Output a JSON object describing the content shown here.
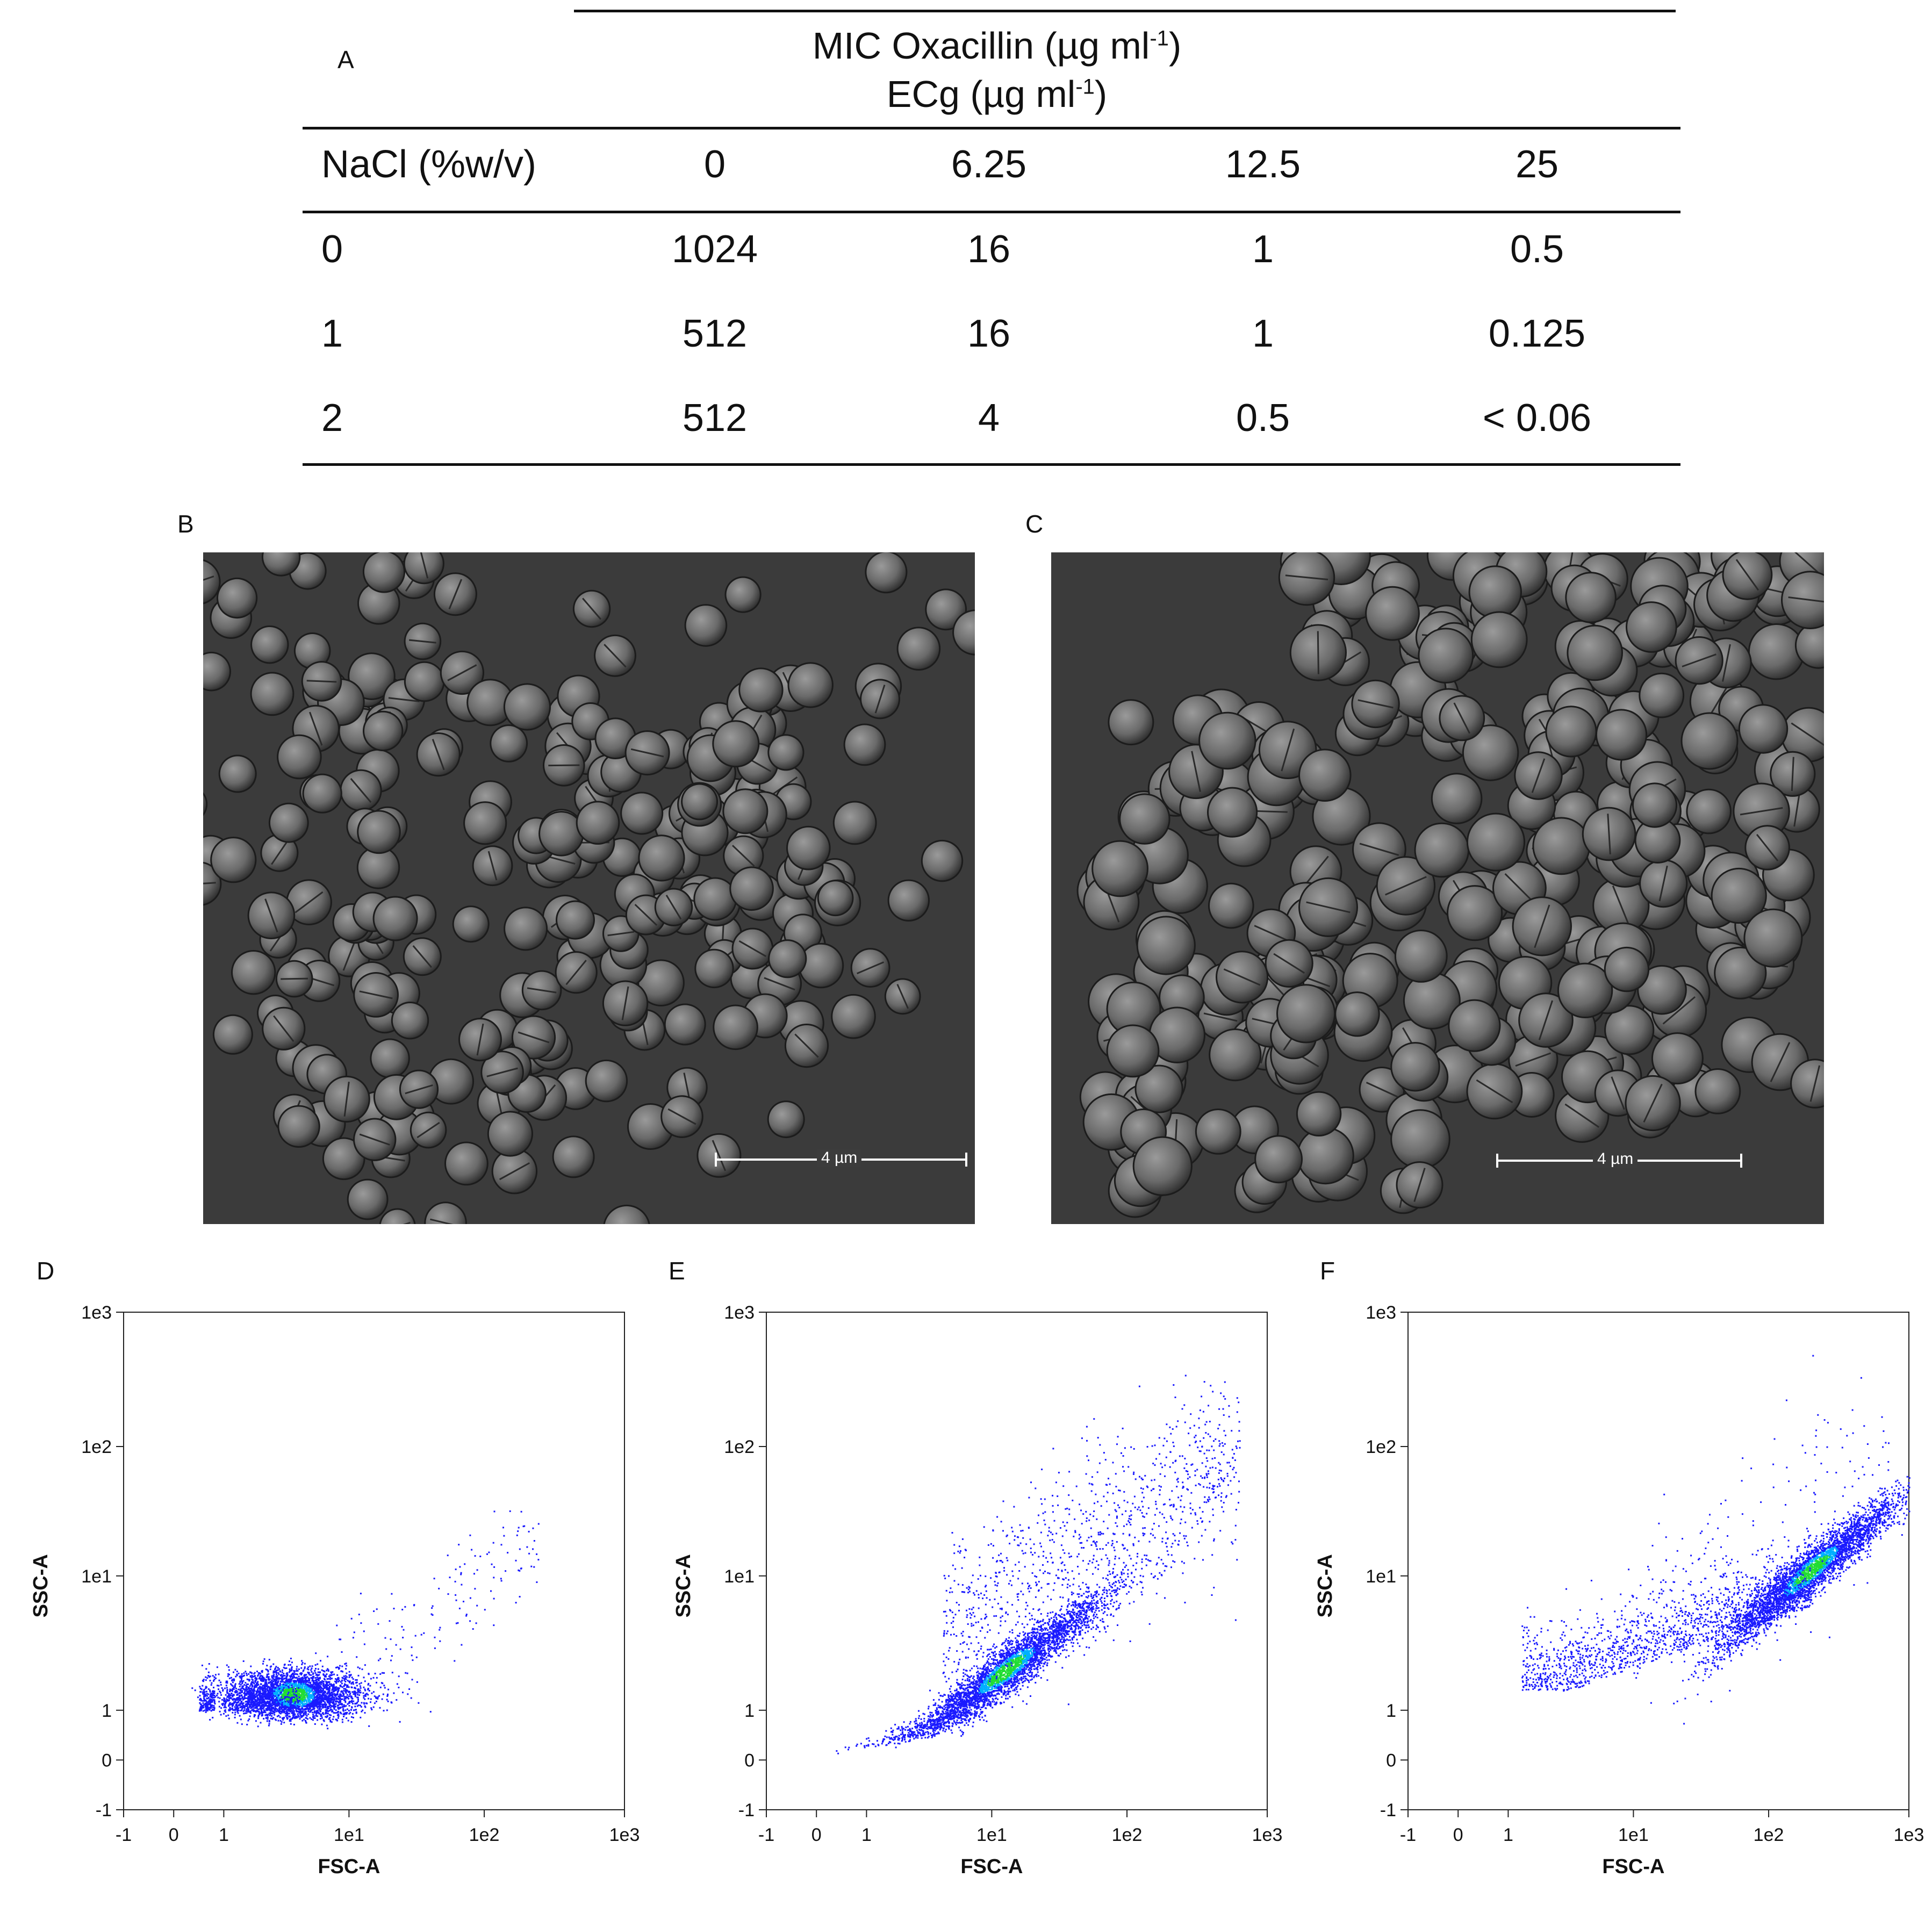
{
  "panels": {
    "a": "A",
    "b": "B",
    "c": "C",
    "d": "D",
    "e": "E",
    "f": "F"
  },
  "table": {
    "header_line1": "MIC Oxacillin (µg ml",
    "header_line1_sup": "-1",
    "header_line1_end": ")",
    "header_line2": "ECg (µg ml",
    "header_line2_sup": "-1",
    "header_line2_end": ")",
    "row_header": "NaCl (%w/v)",
    "columns": [
      "0",
      "6.25",
      "12.5",
      "25"
    ],
    "rows": [
      {
        "nacl": "0",
        "values": [
          "1024",
          "16",
          "1",
          "0.5"
        ]
      },
      {
        "nacl": "1",
        "values": [
          "512",
          "16",
          "1",
          "0.125"
        ]
      },
      {
        "nacl": "2",
        "values": [
          "512",
          "4",
          "0.5",
          "< 0.06"
        ]
      }
    ]
  },
  "sem": {
    "b_scale": "4 µm",
    "c_scale": "4 µm"
  },
  "chart_data": [
    {
      "type": "scatter",
      "panel": "D",
      "xlabel": "FSC-A",
      "ylabel": "SSC-A",
      "x_ticks": [
        "-1",
        "0",
        "1",
        "1e1",
        "1e2",
        "1e3"
      ],
      "y_ticks": [
        "-1",
        "0",
        "1",
        "1e1",
        "1e2",
        "1e3"
      ],
      "scale": "biexponential",
      "population_center": {
        "x": 3.5,
        "y": 1.3
      },
      "colors": [
        "#1a1aff",
        "#00b0ff",
        "#22dd33"
      ]
    },
    {
      "type": "scatter",
      "panel": "E",
      "xlabel": "FSC-A",
      "ylabel": "SSC-A",
      "x_ticks": [
        "-1",
        "0",
        "1",
        "1e1",
        "1e2",
        "1e3"
      ],
      "y_ticks": [
        "-1",
        "0",
        "1",
        "1e1",
        "1e2",
        "1e3"
      ],
      "scale": "biexponential",
      "population_center": {
        "x": 12,
        "y": 1.9
      },
      "colors": [
        "#1a1aff",
        "#00b0ff",
        "#22dd33"
      ]
    },
    {
      "type": "scatter",
      "panel": "F",
      "xlabel": "FSC-A",
      "ylabel": "SSC-A",
      "x_ticks": [
        "-1",
        "0",
        "1",
        "1e1",
        "1e2",
        "1e3"
      ],
      "y_ticks": [
        "-1",
        "0",
        "1",
        "1e1",
        "1e2",
        "1e3"
      ],
      "scale": "biexponential",
      "population_center": {
        "x": 220,
        "y": 12
      },
      "colors": [
        "#1a1aff",
        "#00b0ff",
        "#22dd33"
      ]
    }
  ]
}
